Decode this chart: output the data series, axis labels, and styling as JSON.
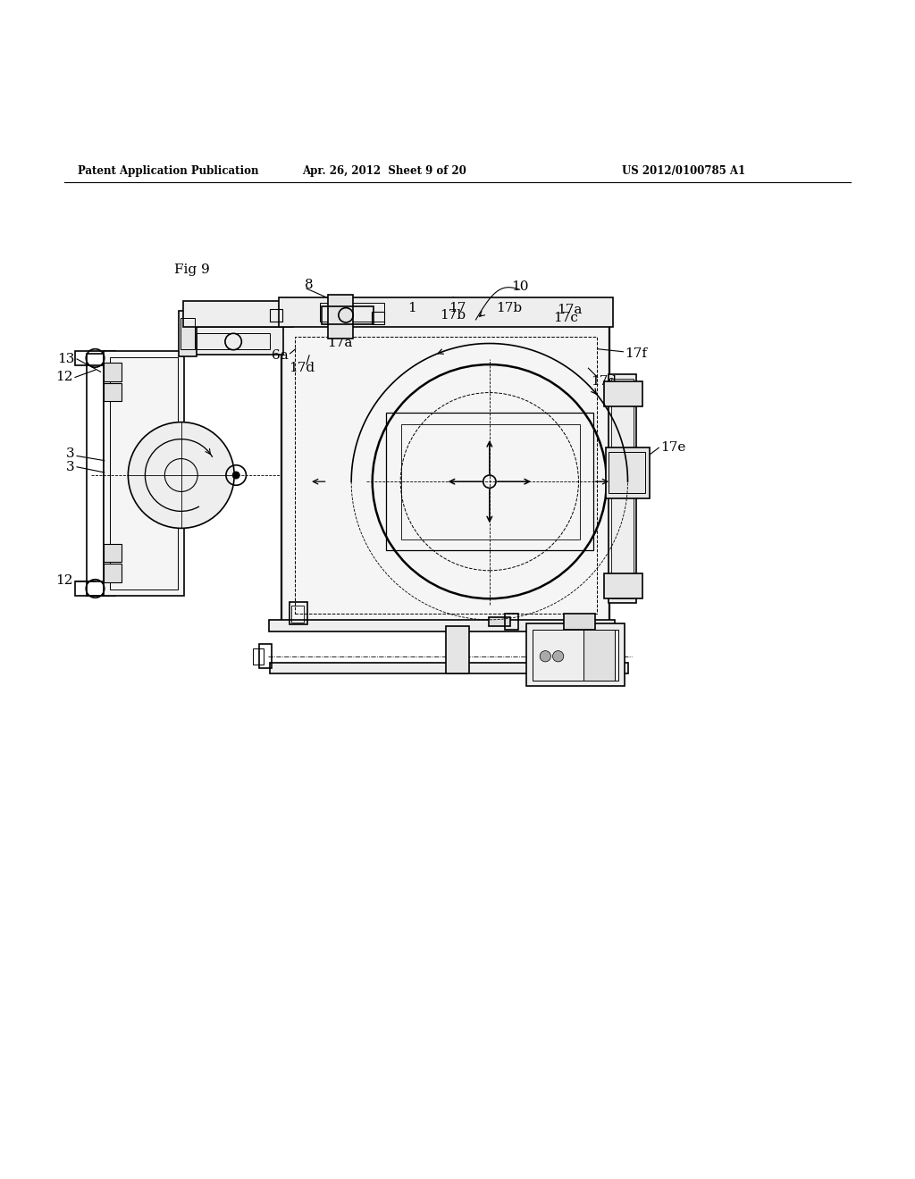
{
  "background_color": "#ffffff",
  "header_left": "Patent Application Publication",
  "header_center": "Apr. 26, 2012  Sheet 9 of 20",
  "header_right": "US 2012/0100785 A1",
  "fig_label": "Fig 9",
  "line_color": "#000000",
  "line_width": 1.2
}
